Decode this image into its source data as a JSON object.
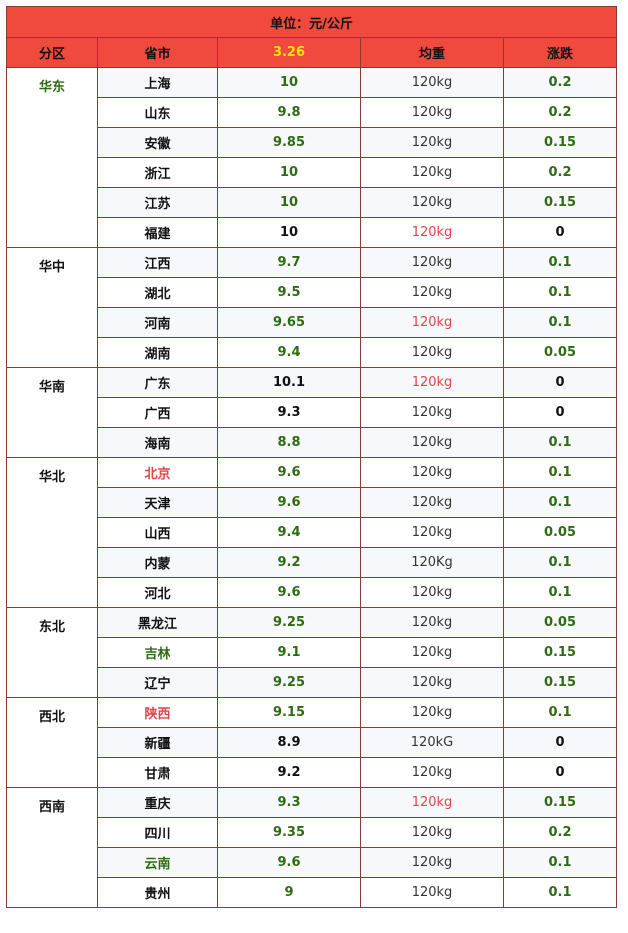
{
  "unit_label": "单位：元/公斤",
  "headers": {
    "region": "分区",
    "province": "省市",
    "date": "3.26",
    "weight": "均重",
    "change": "涨跌"
  },
  "colors": {
    "header_bg": "#f04a3e",
    "green": "#2e6b12",
    "red": "#e0444a",
    "date_yellow": "#ffe600"
  },
  "regions": [
    {
      "name": "华东",
      "rows": [
        {
          "province": "上海",
          "price": "10",
          "weight": "120kg",
          "change": "0.2"
        },
        {
          "province": "山东",
          "price": "9.8",
          "weight": "120kg",
          "change": "0.2"
        },
        {
          "province": "安徽",
          "price": "9.85",
          "weight": "120kg",
          "change": "0.15"
        },
        {
          "province": "浙江",
          "price": "10",
          "weight": "120kg",
          "change": "0.2"
        },
        {
          "province": "江苏",
          "price": "10",
          "weight": "120kg",
          "change": "0.15"
        },
        {
          "province": "福建",
          "price": "10",
          "weight": "120kg",
          "change": "0"
        }
      ]
    },
    {
      "name": "华中",
      "rows": [
        {
          "province": "江西",
          "price": "9.7",
          "weight": "120kg",
          "change": "0.1"
        },
        {
          "province": "湖北",
          "price": "9.5",
          "weight": "120kg",
          "change": "0.1"
        },
        {
          "province": "河南",
          "price": "9.65",
          "weight": "120kg",
          "change": "0.1"
        },
        {
          "province": "湖南",
          "price": "9.4",
          "weight": "120kg",
          "change": "0.05"
        }
      ]
    },
    {
      "name": "华南",
      "rows": [
        {
          "province": "广东",
          "price": "10.1",
          "weight": "120kg",
          "change": "0"
        },
        {
          "province": "广西",
          "price": "9.3",
          "weight": "120kg",
          "change": "0"
        },
        {
          "province": "海南",
          "price": "8.8",
          "weight": "120kg",
          "change": "0.1"
        }
      ]
    },
    {
      "name": "华北",
      "rows": [
        {
          "province": "北京",
          "price": "9.6",
          "weight": "120kg",
          "change": "0.1"
        },
        {
          "province": "天津",
          "price": "9.6",
          "weight": "120kg",
          "change": "0.1"
        },
        {
          "province": "山西",
          "price": "9.4",
          "weight": "120kg",
          "change": "0.05"
        },
        {
          "province": "内蒙",
          "price": "9.2",
          "weight": "120Kg",
          "change": "0.1"
        },
        {
          "province": "河北",
          "price": "9.6",
          "weight": "120kg",
          "change": "0.1"
        }
      ]
    },
    {
      "name": "东北",
      "rows": [
        {
          "province": "黑龙江",
          "price": "9.25",
          "weight": "120kg",
          "change": "0.05"
        },
        {
          "province": "吉林",
          "price": "9.1",
          "weight": "120kg",
          "change": "0.15"
        },
        {
          "province": "辽宁",
          "price": "9.25",
          "weight": "120kg",
          "change": "0.15"
        }
      ]
    },
    {
      "name": "西北",
      "rows": [
        {
          "province": "陕西",
          "price": "9.15",
          "weight": "120kg",
          "change": "0.1"
        },
        {
          "province": "新疆",
          "price": "8.9",
          "weight": "120kG",
          "change": "0"
        },
        {
          "province": "甘肃",
          "price": "9.2",
          "weight": "120kg",
          "change": "0"
        }
      ]
    },
    {
      "name": "西南",
      "rows": [
        {
          "province": "重庆",
          "price": "9.3",
          "weight": "120kg",
          "change": "0.15"
        },
        {
          "province": "四川",
          "price": "9.35",
          "weight": "120kg",
          "change": "0.2"
        },
        {
          "province": "云南",
          "price": "9.6",
          "weight": "120kg",
          "change": "0.1"
        },
        {
          "province": "贵州",
          "price": "9",
          "weight": "120kg",
          "change": "0.1"
        }
      ]
    }
  ]
}
